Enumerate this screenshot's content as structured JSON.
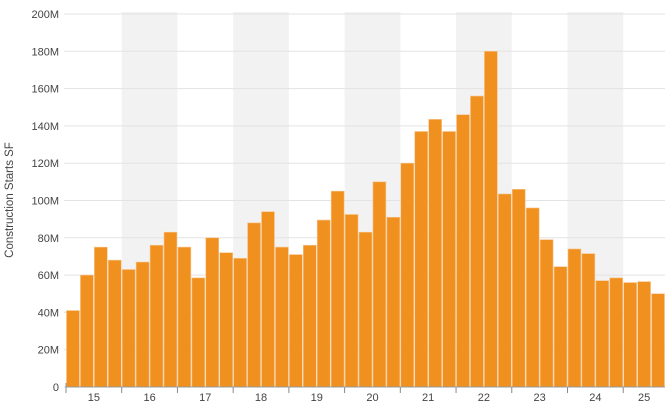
{
  "chart_data": {
    "type": "bar",
    "title": "",
    "xlabel": "",
    "ylabel": "Construction Starts SF",
    "ylim": [
      0,
      200000000
    ],
    "y_ticks": [
      "0",
      "20M",
      "40M",
      "60M",
      "80M",
      "100M",
      "120M",
      "140M",
      "160M",
      "180M",
      "200M"
    ],
    "x_tick_labels": [
      "15",
      "16",
      "17",
      "18",
      "19",
      "20",
      "21",
      "22",
      "23",
      "24",
      "25"
    ],
    "shaded_years": [
      "16",
      "18",
      "20",
      "22",
      "24"
    ],
    "grid": true,
    "bar_color": "#f0901f",
    "band_color": "#f2f2f2",
    "categories": [
      "15 Q1",
      "15 Q2",
      "15 Q3",
      "15 Q4",
      "16 Q1",
      "16 Q2",
      "16 Q3",
      "16 Q4",
      "17 Q1",
      "17 Q2",
      "17 Q3",
      "17 Q4",
      "18 Q1",
      "18 Q2",
      "18 Q3",
      "18 Q4",
      "19 Q1",
      "19 Q2",
      "19 Q3",
      "19 Q4",
      "20 Q1",
      "20 Q2",
      "20 Q3",
      "20 Q4",
      "21 Q1",
      "21 Q2",
      "21 Q3",
      "21 Q4",
      "22 Q1",
      "22 Q2",
      "22 Q3",
      "22 Q4",
      "23 Q1",
      "23 Q2",
      "23 Q3",
      "23 Q4",
      "24 Q1",
      "24 Q2",
      "24 Q3",
      "24 Q4",
      "25 Q1",
      "25 Q2",
      "25 Q3"
    ],
    "values": [
      41,
      60,
      75,
      68,
      63,
      67,
      76,
      83,
      75,
      58.5,
      80,
      72,
      69,
      88,
      94,
      75,
      71,
      76,
      89.5,
      105,
      92.5,
      83,
      110,
      91,
      120,
      137,
      143.5,
      137,
      146,
      156,
      180,
      103.5,
      106,
      96,
      79,
      64.5,
      74,
      71.5,
      57,
      58.5,
      56,
      56.5,
      50
    ],
    "value_unit": "M"
  }
}
